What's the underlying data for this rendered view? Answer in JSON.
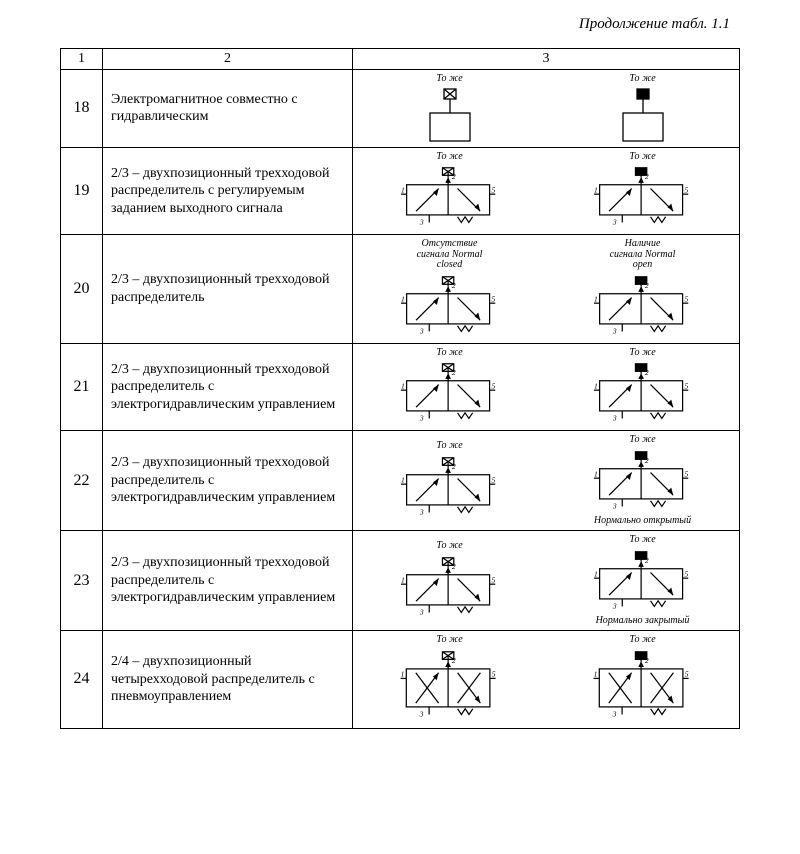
{
  "caption": "Продолжение табл. 1.1",
  "headers": {
    "c1": "1",
    "c2": "2",
    "c3": "3"
  },
  "rows": [
    {
      "n": "18",
      "desc": "Электромагнитное совместно с гидравлическим",
      "left": {
        "top": "То же",
        "kind": "head",
        "solid": false
      },
      "right": {
        "top": "То же",
        "kind": "head",
        "solid": true
      }
    },
    {
      "n": "19",
      "desc": "2/3 – двухпозиционный трехходовой распределитель с регулируемым заданием выходного сигнала",
      "left": {
        "top": "То же",
        "kind": "valve3",
        "solid": false,
        "ports": [
          "1",
          "2",
          "3",
          "5"
        ]
      },
      "right": {
        "top": "То же",
        "kind": "valve3",
        "solid": true,
        "ports": [
          "1",
          "2",
          "3",
          "5"
        ]
      }
    },
    {
      "n": "20",
      "desc": "2/3 – двухпозиционный трехходовой распределитель",
      "left": {
        "top": "Отсутствие сигнала Normal closed",
        "kind": "valve3",
        "solid": false,
        "ports": [
          "1",
          "3",
          "5"
        ]
      },
      "right": {
        "top": "Наличие сигнала Normal open",
        "kind": "valve3",
        "solid": true,
        "ports": [
          "1",
          "3",
          "5"
        ]
      }
    },
    {
      "n": "21",
      "desc": "2/3 – двухпозиционный трехходовой распределитель с электрогидравлическим управлением",
      "left": {
        "top": "То же",
        "kind": "valve3",
        "solid": false,
        "ports": [
          "1",
          "3",
          "5"
        ]
      },
      "right": {
        "top": "То же",
        "kind": "valve3",
        "solid": true,
        "ports": [
          "1",
          "3",
          "5"
        ]
      }
    },
    {
      "n": "22",
      "desc": "2/3 – двухпозиционный трехходовой распределитель с электрогидравлическим управлением",
      "left": {
        "top": "То же",
        "kind": "valve3",
        "solid": false,
        "ports": [
          "1",
          "3",
          "5"
        ],
        "bottom": ""
      },
      "right": {
        "top": "То же",
        "kind": "valve3",
        "solid": true,
        "ports": [
          "1",
          "3",
          "5"
        ],
        "bottom": "Нормально открытый"
      }
    },
    {
      "n": "23",
      "desc": "2/3 – двухпозиционный трехходовой распределитель с электрогидравлическим управлением",
      "left": {
        "top": "То же",
        "kind": "valve3",
        "solid": false,
        "ports": [
          "1",
          "2",
          "3",
          "5"
        ],
        "bottom": ""
      },
      "right": {
        "top": "То же",
        "kind": "valve3",
        "solid": true,
        "ports": [
          "1",
          "2",
          "3",
          "5"
        ],
        "bottom": "Нормально закрытый"
      }
    },
    {
      "n": "24",
      "desc": "2/4 – двухпозиционный четырехходовой распределитель с пневмоуправлением",
      "left": {
        "top": "То же",
        "kind": "valve4",
        "solid": false,
        "ports": [
          "1",
          "2",
          "3",
          "5",
          "E"
        ]
      },
      "right": {
        "top": "То же",
        "kind": "valve4",
        "solid": true,
        "ports": [
          "1",
          "2",
          "3",
          "5",
          "E"
        ]
      }
    }
  ],
  "style": {
    "stroke": "#000000",
    "stroke_width": 1.3,
    "font": "Times New Roman"
  }
}
